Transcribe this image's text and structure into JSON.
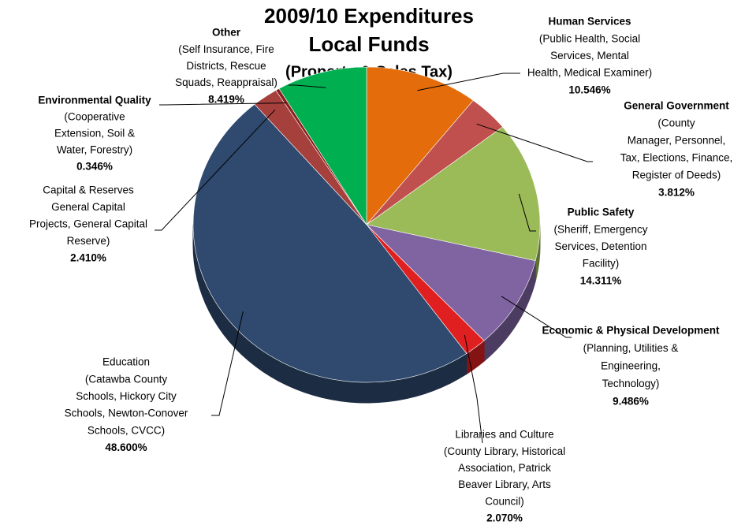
{
  "chart_data": {
    "type": "pie",
    "title": [
      "2009/10 Expenditures",
      "Local Funds",
      "(Property & Sales Tax)"
    ],
    "categories": [
      "Human Services",
      "General Government",
      "Public Safety",
      "Economic & Physical Development",
      "Libraries and Culture",
      "Education",
      "Capital & Reserves",
      "Environmental Quality",
      "Other"
    ],
    "descriptions": [
      [
        "(Public Health, Social",
        "Services, Mental",
        "Health, Medical Examiner)"
      ],
      [
        "(County",
        "Manager, Personnel,",
        "Tax, Elections, Finance,",
        "Register of Deeds)"
      ],
      [
        "(Sheriff, Emergency",
        "Services, Detention",
        "Facility)"
      ],
      [
        "(Planning, Utilities &",
        "Engineering,",
        "Technology)"
      ],
      [
        "(County Library, Historical",
        "Association, Patrick",
        "Beaver Library, Arts",
        "Council)"
      ],
      [
        "(Catawba County",
        "Schools, Hickory City",
        "Schools, Newton-Conover",
        "Schools, CVCC)"
      ],
      [
        "General Capital",
        "Projects, General Capital",
        "Reserve)"
      ],
      [
        "(Cooperative",
        "Extension, Soil &",
        "Water, Forestry)"
      ],
      [
        "(Self Insurance, Fire",
        "Districts, Rescue",
        "Squads, Reappraisal)"
      ]
    ],
    "bold_names": [
      true,
      true,
      true,
      true,
      false,
      false,
      false,
      true,
      true
    ],
    "values": [
      10.546,
      3.812,
      14.311,
      9.486,
      2.07,
      48.6,
      2.41,
      0.346,
      8.419
    ],
    "value_labels": [
      "10.546%",
      "3.812%",
      "14.311%",
      "9.486%",
      "2.070%",
      "48.600%",
      "2.410%",
      "0.346%",
      "8.419%"
    ],
    "colors": [
      "#E46C0A",
      "#C0504D",
      "#9BBB59",
      "#8064A2",
      "#E02020",
      "#2F4A6E",
      "#A5403D",
      "#8B1E1E",
      "#00B050"
    ]
  }
}
